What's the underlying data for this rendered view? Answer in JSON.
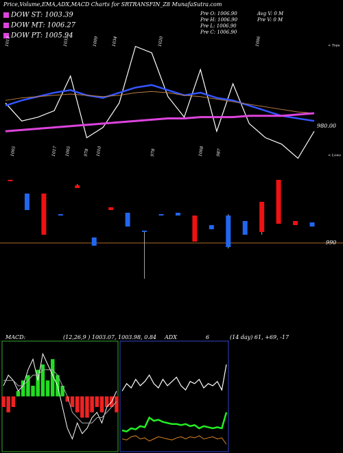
{
  "chart_data": [
    {
      "type": "line",
      "title": "Price,Volume,EMA,ADX,MACD Charts for SRTRANSFIN_Z8 MunafaSutra.com",
      "annotations": [
        "DOW ST: 1003.39",
        "DOW MT: 1006.27",
        "DOW PT: 1005.94",
        "Pre  O: 1006.90",
        "Pre  H: 1006.90",
        "Pre  L: 1006.90",
        "Pre  C: 1006.90",
        "Avg V: 0  M",
        "Pre  V: 0  M",
        "< Tops",
        "< Lows"
      ],
      "top_labels": [
        "1013",
        "1033",
        "1009",
        "1034",
        "1020",
        "1006"
      ],
      "bottom_labels": [
        "1005",
        "1017",
        "1005",
        "1010",
        "978",
        "978",
        "1008",
        "987"
      ],
      "categories": [
        null,
        null,
        null,
        null,
        null,
        null,
        null,
        null,
        null,
        null,
        null,
        null,
        null,
        null,
        null,
        null,
        null,
        null,
        null,
        null
      ],
      "ylim": [
        950,
        1045
      ],
      "yticks": [
        {
          "value": 980,
          "label": "980.00"
        }
      ],
      "series": [
        {
          "color": "#ffffff",
          "width": 1.2,
          "values": [
            998,
            984,
            987,
            992,
            1019,
            971,
            979,
            998,
            1042,
            1037,
            1003,
            987,
            1024,
            976,
            1013,
            982,
            971,
            966,
            955,
            976
          ]
        },
        {
          "color": "#3355ff",
          "width": 2.5,
          "values": [
            996,
            1000,
            1003,
            1006,
            1008,
            1004,
            1002,
            1006,
            1010,
            1012,
            1008,
            1004,
            1006,
            1002,
            1000,
            996,
            992,
            988,
            986,
            984
          ]
        },
        {
          "color": "#c08040",
          "width": 1,
          "values": [
            1000,
            1002,
            1003,
            1004,
            1005,
            1004,
            1003,
            1004,
            1006,
            1007,
            1006,
            1004,
            1003,
            1001,
            999,
            997,
            995,
            993,
            991,
            990
          ]
        },
        {
          "color": "#dd44dd",
          "width": 3,
          "values": [
            976,
            977,
            978,
            979,
            980,
            981,
            982,
            983,
            984,
            985,
            986,
            986,
            987,
            987,
            987,
            988,
            988,
            988,
            989,
            990
          ]
        }
      ]
    },
    {
      "type": "candlestick",
      "categories": [
        null,
        null,
        null,
        null,
        null,
        null,
        null,
        null,
        null,
        null,
        null,
        null,
        null,
        null,
        null,
        null,
        null,
        null,
        null
      ],
      "color_up": "#2266ee",
      "color_down": "#ee1111",
      "grid": true,
      "grid_color": "#b06a2a",
      "ylim": [
        976,
        1016
      ],
      "yticks": [
        990
      ],
      "open": [
        1013,
        1002,
        1008,
        1000,
        1011,
        989,
        1003,
        996,
        994,
        1000,
        1000,
        1000,
        995,
        988.5,
        993,
        1005,
        1013,
        998,
        996
      ],
      "close": [
        1012.5,
        1008,
        993,
        1000.5,
        1010,
        992,
        1002,
        1001,
        994.5,
        1000.5,
        1001,
        990.5,
        996.5,
        1000,
        998,
        994,
        997,
        996.5,
        997.5
      ],
      "high": [
        1013,
        1008,
        1008,
        1000.5,
        1011.5,
        992,
        1003,
        1001,
        994.5,
        1000.5,
        1001,
        1000,
        996.5,
        1000.5,
        998,
        1005,
        1013,
        998,
        997.5
      ],
      "low": [
        1012.5,
        1002,
        993,
        1000,
        1010,
        989,
        1002,
        996,
        977,
        1000,
        1000,
        990.5,
        995,
        988,
        993,
        993,
        997,
        996.5,
        996
      ]
    },
    {
      "type": "bar",
      "title": "MACD:",
      "subtitle": "(12,26,9 ) 1003.07, 1003.98, 0.84",
      "categories": [
        null,
        null,
        null,
        null,
        null,
        null,
        null,
        null,
        null,
        null,
        null,
        null,
        null,
        null,
        null,
        null,
        null,
        null,
        null,
        null,
        null,
        null,
        null,
        null
      ],
      "color_up": "#22dd22",
      "color_down": "#ee2222",
      "border": "#33aa33",
      "ylim": [
        -10,
        10
      ],
      "values": [
        -2,
        -3,
        -2,
        1,
        3,
        4,
        2,
        5,
        6,
        3,
        7,
        4,
        2,
        -1,
        -2,
        -3,
        -4,
        -4,
        -3,
        -2,
        -3,
        -2,
        -2,
        -3
      ],
      "series": [
        {
          "color": "#ffffff",
          "values": [
            2,
            4,
            3,
            1,
            2,
            5,
            7,
            3,
            8,
            6,
            4,
            2,
            -2,
            -6,
            -8,
            -5,
            -7,
            -6,
            -4,
            -3,
            -5,
            -2,
            -1,
            1
          ]
        },
        {
          "color": "#aaaaaa",
          "values": [
            3,
            3,
            3,
            2,
            2,
            3,
            4,
            4,
            5,
            5,
            5,
            4,
            2,
            0,
            -3,
            -4,
            -5,
            -5,
            -5,
            -4,
            -4,
            -3,
            -2,
            -1
          ]
        }
      ]
    },
    {
      "type": "line",
      "title": "ADX",
      "subtitle": "6",
      "annotations": [
        "(14 day) 61, +69, -17"
      ],
      "border": "#3344cc",
      "categories": [
        null,
        null,
        null,
        null,
        null,
        null,
        null,
        null,
        null,
        null,
        null,
        null,
        null,
        null,
        null,
        null,
        null,
        null,
        null,
        null,
        null,
        null,
        null,
        null
      ],
      "ylim": [
        0,
        100
      ],
      "series": [
        {
          "color": "#ffffff",
          "width": 1.2,
          "values": [
            55,
            62,
            58,
            66,
            60,
            64,
            70,
            62,
            58,
            66,
            60,
            64,
            68,
            60,
            56,
            64,
            62,
            66,
            58,
            62,
            60,
            64,
            56,
            80
          ]
        },
        {
          "color": "#22ee22",
          "width": 2.5,
          "values": [
            18,
            17,
            20,
            19,
            22,
            21,
            30,
            27,
            28,
            26,
            25,
            24,
            24,
            23,
            24,
            22,
            23,
            20,
            22,
            21,
            20,
            21,
            20,
            35
          ]
        },
        {
          "color": "#dd8822",
          "width": 1,
          "values": [
            10,
            9,
            12,
            13,
            10,
            11,
            8,
            10,
            12,
            11,
            10,
            9,
            11,
            12,
            10,
            12,
            11,
            13,
            10,
            11,
            12,
            10,
            11,
            5
          ]
        }
      ]
    }
  ]
}
